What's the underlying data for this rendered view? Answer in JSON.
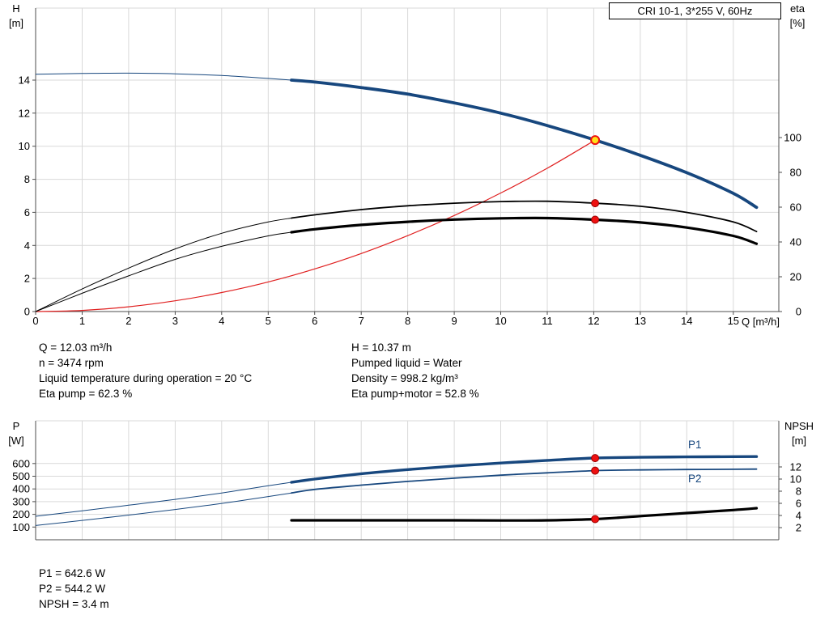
{
  "colors": {
    "blue": "#17477e",
    "black": "#000000",
    "red": "#e02020",
    "dot_red": "#ee1111",
    "dot_red_edge": "#990000",
    "dot_yellow": "#ffe118",
    "grid": "#d9d9d9",
    "axis": "#4d4d4d",
    "label_blue": "#17477e"
  },
  "labels": {
    "h_axis": {
      "line1": "H",
      "line2": "[m]"
    },
    "eta_axis": {
      "line1": "eta",
      "line2": "[%]"
    },
    "p_axis": {
      "line1": "P",
      "line2": "[W]"
    },
    "npsh_axis": {
      "line1": "NPSH",
      "line2": "[m]"
    },
    "p1": "P1",
    "p2": "P2"
  },
  "info_top": {
    "left": [
      "Q = 12.03 m³/h",
      "n = 3474 rpm",
      "Liquid temperature during operation = 20 °C",
      "Eta pump = 62.3 %"
    ],
    "right": [
      "H = 10.37 m",
      "Pumped liquid = Water",
      "Density = 998.2 kg/m³",
      "Eta pump+motor = 52.8 %"
    ]
  },
  "info_bottom": [
    "P1 = 642.6 W",
    "P2 = 544.2 W",
    "NPSH = 3.4 m"
  ],
  "chart_data": [
    {
      "type": "line",
      "title": "CRI 10-1, 3*255 V, 60Hz",
      "xlabel": "Q [m³/h]",
      "x_ticks": [
        0,
        1,
        2,
        3,
        4,
        5,
        6,
        7,
        8,
        9,
        10,
        11,
        12,
        13,
        14,
        15
      ],
      "xlim": [
        0,
        16
      ],
      "grid": true,
      "left_axis": {
        "label": "H [m]",
        "ticks": [
          0,
          2,
          4,
          6,
          8,
          10,
          12,
          14
        ],
        "lim": [
          0,
          18.3
        ]
      },
      "right_axis": {
        "label": "eta [%]",
        "ticks": [
          0,
          20,
          40,
          60,
          80,
          100
        ],
        "lim": [
          0,
          174
        ]
      },
      "series": [
        {
          "id": "system-curve",
          "name": "System curve",
          "axis": "left",
          "color": "red",
          "w1": 1.2,
          "split": null,
          "points": [
            [
              0,
              0
            ],
            [
              1,
              0.07
            ],
            [
              2,
              0.29
            ],
            [
              3,
              0.65
            ],
            [
              4,
              1.15
            ],
            [
              5,
              1.79
            ],
            [
              6,
              2.58
            ],
            [
              7,
              3.51
            ],
            [
              8,
              4.59
            ],
            [
              9,
              5.81
            ],
            [
              10,
              7.17
            ],
            [
              11,
              8.67
            ],
            [
              12.03,
              10.37
            ]
          ]
        },
        {
          "id": "eta-pump-curve",
          "name": "Eta pump",
          "axis": "right",
          "color": "black",
          "w1": 1,
          "w2": 1.8,
          "split": 5.5,
          "points": [
            [
              0,
              0
            ],
            [
              1,
              13
            ],
            [
              2,
              25
            ],
            [
              3,
              36
            ],
            [
              4,
              45
            ],
            [
              5,
              51.5
            ],
            [
              5.5,
              53.7
            ],
            [
              6,
              55.6
            ],
            [
              7,
              58.6
            ],
            [
              8,
              60.8
            ],
            [
              9,
              62.3
            ],
            [
              10,
              63.2
            ],
            [
              11,
              63.4
            ],
            [
              12.03,
              62.3
            ],
            [
              13,
              60.5
            ],
            [
              14,
              57
            ],
            [
              15,
              51.5
            ],
            [
              15.5,
              46
            ]
          ]
        },
        {
          "id": "eta-pump-motor-curve",
          "name": "Eta pump+motor",
          "axis": "right",
          "color": "black",
          "w1": 1,
          "w2": 3.2,
          "split": 5.5,
          "points": [
            [
              0,
              0
            ],
            [
              1,
              10.5
            ],
            [
              2,
              20.5
            ],
            [
              3,
              30
            ],
            [
              4,
              37.5
            ],
            [
              5,
              43.5
            ],
            [
              5.5,
              45.6
            ],
            [
              6,
              47.3
            ],
            [
              7,
              49.8
            ],
            [
              8,
              51.6
            ],
            [
              9,
              52.9
            ],
            [
              10,
              53.6
            ],
            [
              11,
              53.7
            ],
            [
              12.03,
              52.8
            ],
            [
              13,
              51.2
            ],
            [
              14,
              48.3
            ],
            [
              15,
              43.5
            ],
            [
              15.5,
              39
            ]
          ]
        },
        {
          "id": "h-curve",
          "name": "H",
          "axis": "left",
          "color": "blue",
          "w1": 1,
          "w2": 3.8,
          "split": 5.5,
          "points": [
            [
              0,
              14.35
            ],
            [
              1,
              14.4
            ],
            [
              2,
              14.42
            ],
            [
              3,
              14.38
            ],
            [
              4,
              14.28
            ],
            [
              5,
              14.1
            ],
            [
              5.5,
              14.0
            ],
            [
              6,
              13.88
            ],
            [
              7,
              13.55
            ],
            [
              8,
              13.15
            ],
            [
              9,
              12.62
            ],
            [
              10,
              12.0
            ],
            [
              11,
              11.25
            ],
            [
              12.03,
              10.37
            ],
            [
              13,
              9.45
            ],
            [
              14,
              8.4
            ],
            [
              15,
              7.15
            ],
            [
              15.5,
              6.3
            ]
          ]
        }
      ],
      "markers": [
        {
          "name": "eta-pump-dot",
          "q": 12.03,
          "v": 62.3,
          "axis": "right",
          "kind": "dot"
        },
        {
          "name": "eta-pump-motor-dot",
          "q": 12.03,
          "v": 52.8,
          "axis": "right",
          "kind": "dot"
        },
        {
          "name": "operating-point-marker",
          "q": 12.03,
          "v": 10.37,
          "axis": "left",
          "kind": "op"
        }
      ]
    },
    {
      "type": "line",
      "title": "",
      "xlabel": "",
      "x_ticks": [
        0,
        1,
        2,
        3,
        4,
        5,
        6,
        7,
        8,
        9,
        10,
        11,
        12,
        13,
        14,
        15
      ],
      "xlim": [
        0,
        16
      ],
      "grid": true,
      "left_axis": {
        "label": "P [W]",
        "ticks": [
          100,
          200,
          300,
          400,
          500,
          600
        ],
        "lim": [
          0,
          936
        ]
      },
      "right_axis": {
        "label": "NPSH [m]",
        "ticks": [
          2,
          4,
          6,
          8,
          10,
          12
        ],
        "lim": [
          0,
          19.6
        ]
      },
      "series": [
        {
          "id": "p2-curve",
          "name": "P2",
          "axis": "left",
          "color": "blue",
          "w1": 1,
          "w2": 1.8,
          "split": 5.5,
          "points": [
            [
              0,
              112
            ],
            [
              1,
              152
            ],
            [
              2,
              194
            ],
            [
              3,
              238
            ],
            [
              4,
              286
            ],
            [
              5,
              340
            ],
            [
              5.5,
              368
            ],
            [
              6,
              396
            ],
            [
              7,
              430
            ],
            [
              8,
              459
            ],
            [
              9,
              485
            ],
            [
              10,
              508
            ],
            [
              11,
              527
            ],
            [
              12.03,
              544
            ],
            [
              13,
              550
            ],
            [
              14,
              553
            ],
            [
              15,
              555
            ],
            [
              15.5,
              556
            ]
          ]
        },
        {
          "id": "p1-curve",
          "name": "P1",
          "axis": "left",
          "color": "blue",
          "w1": 1,
          "w2": 3.4,
          "split": 5.5,
          "points": [
            [
              0,
              185
            ],
            [
              1,
              228
            ],
            [
              2,
              272
            ],
            [
              3,
              318
            ],
            [
              4,
              368
            ],
            [
              5,
              425
            ],
            [
              5.5,
              452
            ],
            [
              6,
              478
            ],
            [
              7,
              520
            ],
            [
              8,
              552
            ],
            [
              9,
              580
            ],
            [
              10,
              604
            ],
            [
              11,
              625
            ],
            [
              12.03,
              643
            ],
            [
              13,
              649
            ],
            [
              14,
              652
            ],
            [
              15,
              654
            ],
            [
              15.5,
              655
            ]
          ]
        },
        {
          "id": "npsh-curve",
          "name": "NPSH",
          "axis": "right",
          "color": "black",
          "w1": 1,
          "w2": 3.2,
          "split": 5.5,
          "points": [
            [
              5.5,
              3.2
            ],
            [
              6,
              3.2
            ],
            [
              7,
              3.2
            ],
            [
              8,
              3.2
            ],
            [
              9,
              3.2
            ],
            [
              10,
              3.18
            ],
            [
              11,
              3.2
            ],
            [
              12.03,
              3.4
            ],
            [
              13,
              3.9
            ],
            [
              14,
              4.4
            ],
            [
              15,
              4.9
            ],
            [
              15.5,
              5.2
            ]
          ]
        }
      ],
      "markers": [
        {
          "name": "p1-dot",
          "q": 12.03,
          "v": 642.6,
          "axis": "left",
          "kind": "dot"
        },
        {
          "name": "p2-dot",
          "q": 12.03,
          "v": 544.2,
          "axis": "left",
          "kind": "dot"
        },
        {
          "name": "npsh-dot",
          "q": 12.03,
          "v": 3.4,
          "axis": "right",
          "kind": "dot"
        }
      ]
    }
  ]
}
